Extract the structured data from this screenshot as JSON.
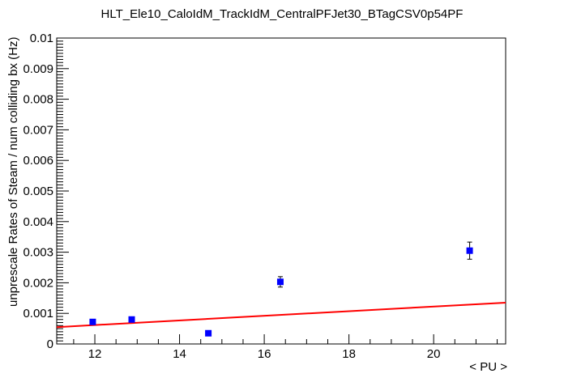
{
  "chart_data": {
    "type": "scatter",
    "title": "HLT_Ele10_CaloIdM_TrackIdM_CentralPFJet30_BTagCSV0p54PF",
    "xlabel": "< PU >",
    "ylabel": "unprescale Rates of Steam / num colliding bx (Hz)",
    "xlim": [
      11.1,
      21.7
    ],
    "ylim": [
      0,
      0.01
    ],
    "x_ticks": [
      "12",
      "14",
      "16",
      "18",
      "20"
    ],
    "y_ticks": [
      "0",
      "0.001",
      "0.002",
      "0.003",
      "0.004",
      "0.005",
      "0.006",
      "0.007",
      "0.008",
      "0.009",
      "0.01"
    ],
    "grid": false,
    "series": [
      {
        "marker": "square",
        "color": "#0000ff",
        "points": [
          {
            "x": 11.95,
            "y": 0.00072,
            "err": 5e-05
          },
          {
            "x": 12.87,
            "y": 0.0008,
            "err": 5e-05
          },
          {
            "x": 14.68,
            "y": 0.00035,
            "err": 4e-05
          },
          {
            "x": 16.38,
            "y": 0.00203,
            "err": 0.00017
          },
          {
            "x": 20.85,
            "y": 0.00305,
            "err": 0.00028
          }
        ]
      }
    ],
    "fit": {
      "type": "line",
      "color": "#ff0000",
      "points": [
        {
          "x": 11.1,
          "y": 0.00055
        },
        {
          "x": 21.7,
          "y": 0.00135
        }
      ]
    }
  }
}
